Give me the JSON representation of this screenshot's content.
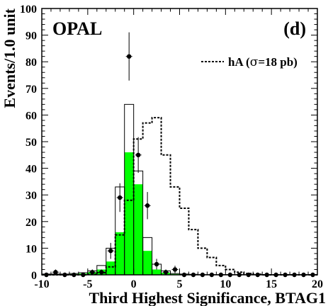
{
  "chart_data": {
    "type": "bar",
    "experiment_label": "OPAL",
    "panel_label": "(d)",
    "xlabel": "Third Highest Significance, BTAG1",
    "ylabel": "Events/1.0 unit",
    "xlim": [
      -10,
      20
    ],
    "ylim": [
      0,
      100
    ],
    "x_ticks": [
      -10,
      -5,
      0,
      5,
      10,
      15,
      20
    ],
    "y_ticks": [
      0,
      10,
      20,
      30,
      40,
      50,
      60,
      70,
      80,
      90,
      100
    ],
    "legend": {
      "position": "top-right",
      "label_prefix": "hA (",
      "label_sigma": "σ",
      "label_suffix": "=18 pb)",
      "style": "dotted"
    },
    "bin_width": 1,
    "series": [
      {
        "role": "background_total",
        "style": "outline",
        "color": "#000000",
        "bin_low_edges": [
          -10,
          -9,
          -8,
          -7,
          -6,
          -5,
          -4,
          -3,
          -2,
          -1,
          0,
          1,
          2,
          3,
          4,
          5,
          6,
          7,
          8,
          9,
          10,
          11,
          12,
          13,
          14,
          15,
          16,
          17,
          18,
          19
        ],
        "values": [
          0.3,
          0.3,
          0.3,
          0.5,
          0.8,
          1.5,
          3.5,
          10,
          33,
          64,
          39,
          14,
          4,
          1.5,
          0.5,
          0.3,
          0.2,
          0.1,
          0.1,
          0.1,
          0.1,
          0.1,
          0.1,
          0.1,
          0.1,
          0.1,
          0.1,
          0.1,
          0.1,
          0.1
        ]
      },
      {
        "role": "background_component",
        "style": "filled",
        "color": "#00ff00",
        "bin_low_edges": [
          -10,
          -9,
          -8,
          -7,
          -6,
          -5,
          -4,
          -3,
          -2,
          -1,
          0,
          1,
          2,
          3,
          4,
          5,
          6,
          7,
          8,
          9,
          10,
          11,
          12,
          13,
          14,
          15,
          16,
          17,
          18,
          19
        ],
        "values": [
          0.2,
          0.2,
          0.2,
          0.3,
          0.5,
          1,
          2,
          5,
          16,
          46,
          34,
          9,
          2,
          0.8,
          0.3,
          0.2,
          0.1,
          0.1,
          0.1,
          0.1,
          0.1,
          0.1,
          0.1,
          0.1,
          0.1,
          0.1,
          0.1,
          0.1,
          0.1,
          0.1
        ]
      },
      {
        "role": "signal",
        "name": "hA (σ=18 pb)",
        "style": "dotted",
        "color": "#000000",
        "bin_low_edges": [
          -10,
          -9,
          -8,
          -7,
          -6,
          -5,
          -4,
          -3,
          -2,
          -1,
          0,
          1,
          2,
          3,
          4,
          5,
          6,
          7,
          8,
          9,
          10,
          11,
          12,
          13,
          14,
          15,
          16,
          17,
          18,
          19
        ],
        "values": [
          0,
          0,
          0,
          0,
          0,
          0.2,
          0.8,
          3,
          15,
          28,
          51,
          57,
          59,
          45,
          33,
          25,
          17,
          10,
          6.5,
          3.5,
          2,
          1,
          0.5,
          0.2,
          0,
          0,
          0,
          0,
          0,
          0
        ]
      },
      {
        "role": "data",
        "style": "points_with_errors",
        "color": "#000000",
        "x": [
          -9.5,
          -8.5,
          -7.5,
          -6.5,
          -5.5,
          -4.5,
          -3.5,
          -2.5,
          -1.5,
          -0.5,
          0.5,
          1.5,
          2.5,
          3.5,
          4.5,
          5.5,
          6.5,
          7.5,
          8.5,
          9.5,
          10.5,
          11.5,
          12.5,
          13.5,
          14.5,
          15.5,
          16.5,
          17.5,
          18.5,
          19.5
        ],
        "y": [
          0,
          1,
          0,
          0,
          0,
          1,
          1,
          9,
          29,
          82,
          45,
          26,
          4,
          1,
          2,
          0,
          0,
          0,
          0,
          0,
          0,
          0,
          0,
          0,
          0,
          0,
          0,
          0,
          0,
          0
        ]
      }
    ]
  }
}
